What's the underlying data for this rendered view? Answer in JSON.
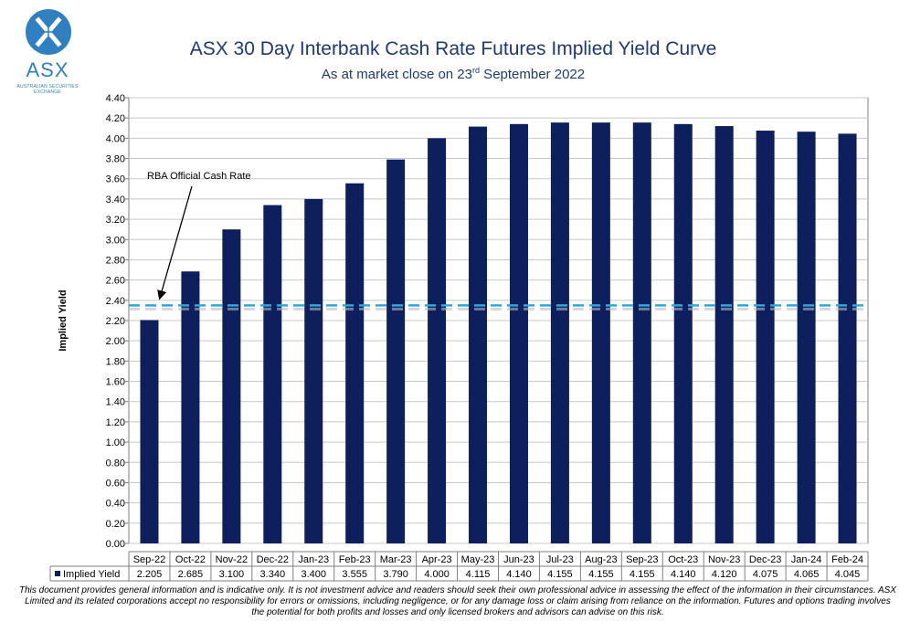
{
  "logo": {
    "text": "ASX",
    "subtext": "AUSTRALIAN SECURITIES EXCHANGE",
    "color": "#2f7fc1"
  },
  "header": {
    "title": "ASX 30 Day Interbank Cash Rate Futures Implied Yield Curve",
    "subtitle_pre": "As at market close on 23",
    "subtitle_sup": "rd",
    "subtitle_post": " September 2022"
  },
  "chart_data": {
    "type": "bar",
    "title": "ASX 30 Day Interbank Cash Rate Futures Implied Yield Curve",
    "ylabel": "Implied Yield",
    "xlabel": "",
    "ylim": [
      0,
      4.4
    ],
    "ytick_step": 0.2,
    "grid": true,
    "categories": [
      "Sep-22",
      "Oct-22",
      "Nov-22",
      "Dec-22",
      "Jan-23",
      "Feb-23",
      "Mar-23",
      "Apr-23",
      "May-23",
      "Jun-23",
      "Jul-23",
      "Aug-23",
      "Sep-23",
      "Oct-23",
      "Nov-23",
      "Dec-23",
      "Jan-24",
      "Feb-24"
    ],
    "series": [
      {
        "name": "Implied Yield",
        "color": "#0d1f5c",
        "values": [
          2.205,
          2.685,
          3.1,
          3.34,
          3.4,
          3.555,
          3.79,
          4.0,
          4.115,
          4.14,
          4.155,
          4.155,
          4.155,
          4.14,
          4.12,
          4.075,
          4.065,
          4.045
        ],
        "value_labels": [
          "2.205",
          "2.685",
          "3.100",
          "3.340",
          "3.400",
          "3.555",
          "3.790",
          "4.000",
          "4.115",
          "4.140",
          "4.155",
          "4.155",
          "4.155",
          "4.140",
          "4.120",
          "4.075",
          "4.065",
          "4.045"
        ]
      }
    ],
    "reference_line": {
      "label": "RBA Official Cash Rate",
      "value": 2.35,
      "color": "#29a9e1"
    },
    "legend_position": "bottom-table"
  },
  "disclaimer": "This document provides general information and is indicative only. It is not investment advice and readers should seek their own professional advice in assessing the effect of the information in their circumstances. ASX Limited and its related corporations accept no responsibility for errors or omissions, including negligence, or for any damage loss or claim arising from reliance on the information. Futures and options trading involves the potential for both profits and losses and only licensed brokers and advisors can advise on this risk."
}
